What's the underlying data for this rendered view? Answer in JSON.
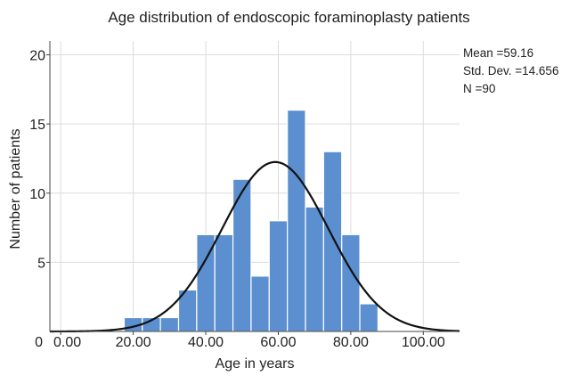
{
  "chart_data": {
    "type": "bar",
    "subtype": "histogram-with-normal-curve",
    "title": "Age distribution of endoscopic foraminoplasty patients",
    "xlabel": "Age in years",
    "ylabel": "Number of patients",
    "x_ticks": [
      "0.00",
      "20.00",
      "40.00",
      "60.00",
      "80.00",
      "100.00"
    ],
    "x_tick_values": [
      0,
      20,
      40,
      60,
      80,
      100
    ],
    "y_ticks": [
      "0",
      "5",
      "10",
      "15",
      "20"
    ],
    "y_tick_values": [
      0,
      5,
      10,
      15,
      20
    ],
    "xlim": [
      -3,
      110
    ],
    "ylim": [
      0,
      21
    ],
    "grid": true,
    "bar_color": "#5b8fcf",
    "bin_width": 5,
    "bins": [
      {
        "start": 17.5,
        "end": 22.5,
        "count": 1
      },
      {
        "start": 22.5,
        "end": 27.5,
        "count": 1
      },
      {
        "start": 27.5,
        "end": 32.5,
        "count": 1
      },
      {
        "start": 32.5,
        "end": 37.5,
        "count": 3
      },
      {
        "start": 37.5,
        "end": 42.5,
        "count": 7
      },
      {
        "start": 42.5,
        "end": 47.5,
        "count": 7
      },
      {
        "start": 47.5,
        "end": 52.5,
        "count": 11
      },
      {
        "start": 52.5,
        "end": 57.5,
        "count": 4
      },
      {
        "start": 57.5,
        "end": 62.5,
        "count": 8
      },
      {
        "start": 62.5,
        "end": 67.5,
        "count": 16
      },
      {
        "start": 67.5,
        "end": 72.5,
        "count": 9
      },
      {
        "start": 72.5,
        "end": 77.5,
        "count": 13
      },
      {
        "start": 77.5,
        "end": 82.5,
        "count": 7
      },
      {
        "start": 82.5,
        "end": 87.5,
        "count": 2
      }
    ],
    "normal_curve": {
      "mean": 59.16,
      "std_dev": 14.656,
      "n": 90,
      "color": "#111111"
    },
    "stats_text": [
      "Mean =59.16",
      "Std. Dev. =14.656",
      "N =90"
    ]
  }
}
